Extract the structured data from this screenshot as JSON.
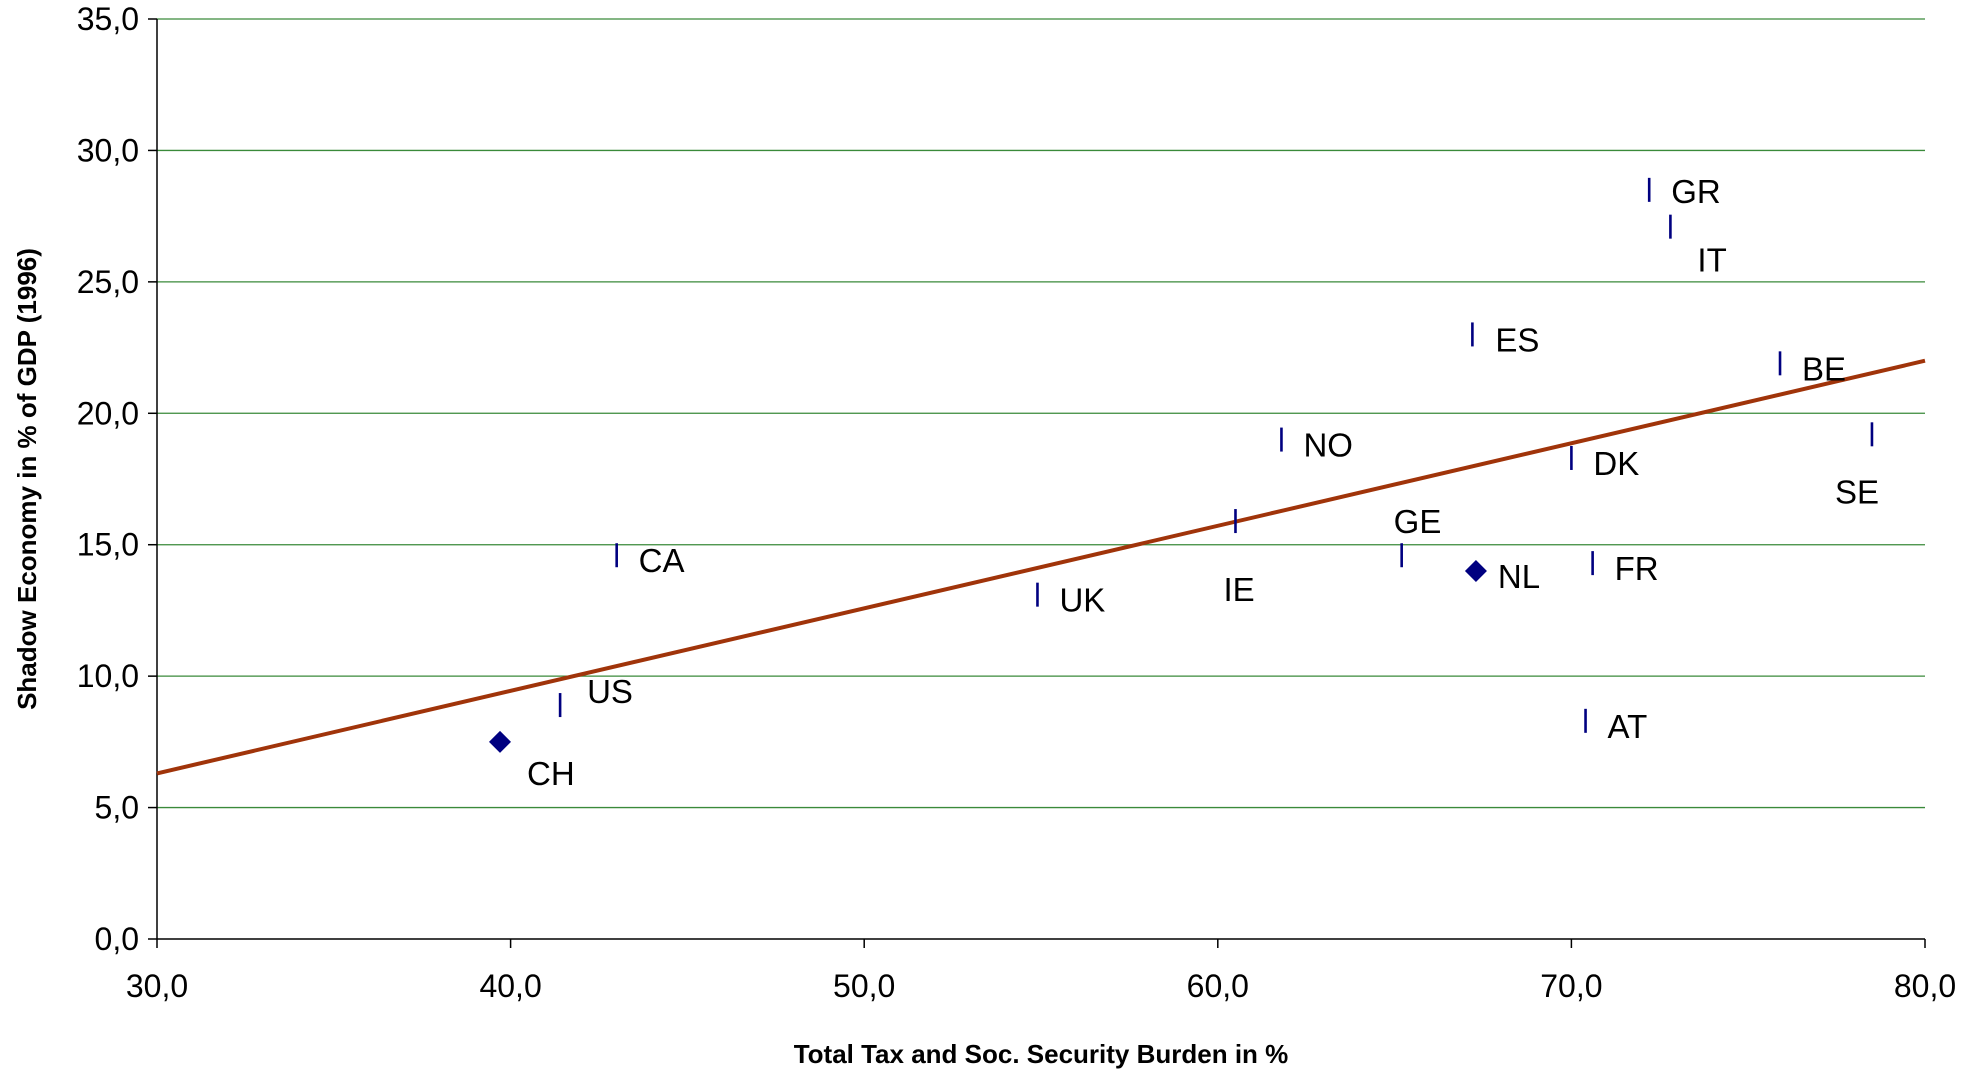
{
  "chart_data": {
    "type": "scatter",
    "title": "",
    "xlabel": "Total Tax and Soc. Security Burden in %",
    "ylabel": "Shadow Economy in % of GDP (1996)",
    "xlim": [
      30,
      80
    ],
    "ylim": [
      0,
      35
    ],
    "x_ticks": [
      "30,0",
      "40,0",
      "50,0",
      "60,0",
      "70,0",
      "80,0"
    ],
    "y_ticks": [
      "0,0",
      "5,0",
      "10,0",
      "15,0",
      "20,0",
      "25,0",
      "30,0",
      "35,0"
    ],
    "x_tick_values": [
      30,
      40,
      50,
      60,
      70,
      80
    ],
    "y_tick_values": [
      0,
      5,
      10,
      15,
      20,
      25,
      30,
      35
    ],
    "grid": "horizontal",
    "colors": {
      "points": "#000080",
      "trend": "#A0340A",
      "grid": "#3A8A3A"
    },
    "points": [
      {
        "label": "GR",
        "x": 72.2,
        "y": 28.5,
        "marker": "bar"
      },
      {
        "label": "IT",
        "x": 72.8,
        "y": 27.1,
        "marker": "bar"
      },
      {
        "label": "ES",
        "x": 67.2,
        "y": 23.0,
        "marker": "bar"
      },
      {
        "label": "BE",
        "x": 75.9,
        "y": 21.9,
        "marker": "bar"
      },
      {
        "label": "SE",
        "x": 78.5,
        "y": 19.2,
        "marker": "bar"
      },
      {
        "label": "NO",
        "x": 61.8,
        "y": 19.0,
        "marker": "bar"
      },
      {
        "label": "DK",
        "x": 70.0,
        "y": 18.3,
        "marker": "bar"
      },
      {
        "label": "IE",
        "x": 60.5,
        "y": 15.9,
        "marker": "bar"
      },
      {
        "label": "GE",
        "x": 65.2,
        "y": 14.6,
        "marker": "bar"
      },
      {
        "label": "CA",
        "x": 43.0,
        "y": 14.6,
        "marker": "bar"
      },
      {
        "label": "FR",
        "x": 70.6,
        "y": 14.3,
        "marker": "bar"
      },
      {
        "label": "NL",
        "x": 67.3,
        "y": 14.0,
        "marker": "diamond"
      },
      {
        "label": "UK",
        "x": 54.9,
        "y": 13.1,
        "marker": "bar"
      },
      {
        "label": "US",
        "x": 41.4,
        "y": 8.9,
        "marker": "bar"
      },
      {
        "label": "AT",
        "x": 70.4,
        "y": 8.3,
        "marker": "bar"
      },
      {
        "label": "CH",
        "x": 39.7,
        "y": 7.5,
        "marker": "diamond"
      }
    ],
    "trendline": {
      "x": [
        30,
        80
      ],
      "y": [
        6.3,
        22.0
      ]
    }
  }
}
